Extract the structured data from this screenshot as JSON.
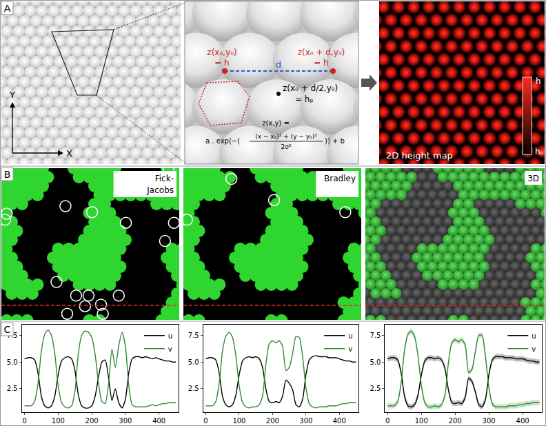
{
  "panels": {
    "A": {
      "label": "A",
      "axes": {
        "x": "X",
        "y": "Y"
      },
      "zoom": {
        "left_point": [
          "z(x₀,y₀)",
          "= h"
        ],
        "distance": "d",
        "right_point": [
          "z(x₀ + d,y₀)",
          "= h"
        ],
        "mid_point": [
          "z(x₀ + d/2,y₀)",
          "= hₚ"
        ],
        "formula": {
          "lhs": "z(x,y) =",
          "prefix": "a . exp(−(",
          "numerator": "(x − x₀)² + (y − y₀)²",
          "denominator": "2σ²",
          "suffix": ")) + b"
        }
      },
      "height_map": {
        "title": "2D height map",
        "scale_top": "h",
        "scale_bottom": "hₚ"
      }
    },
    "B": {
      "label": "B",
      "images": [
        "Fick-Jacobs",
        "Bradley",
        "3D"
      ]
    },
    "C": {
      "label": "C"
    }
  },
  "chart_data": [
    {
      "type": "line",
      "x": [
        0,
        10,
        20,
        30,
        40,
        50,
        60,
        70,
        80,
        90,
        100,
        110,
        120,
        130,
        140,
        150,
        160,
        170,
        180,
        190,
        200,
        210,
        220,
        230,
        240,
        250,
        260,
        270,
        280,
        290,
        300,
        310,
        320,
        330,
        340,
        350,
        360,
        370,
        380,
        390,
        400,
        410,
        420,
        430,
        440,
        450
      ],
      "xlim": [
        -8,
        458
      ],
      "xticks": [
        0,
        100,
        200,
        300,
        400
      ],
      "ylim": [
        0.3,
        8.5
      ],
      "yticks": [
        2.5,
        {
          "value": 5,
          "label": "5.0"
        },
        7.5
      ],
      "legend": "upper right",
      "series": [
        {
          "name": "u",
          "color": "#000000",
          "values": [
            5.3,
            5.4,
            5.4,
            5.2,
            4.0,
            1.8,
            0.9,
            0.7,
            0.9,
            1.8,
            3.8,
            5.1,
            5.4,
            5.5,
            5.3,
            4.2,
            1.9,
            0.9,
            0.7,
            0.7,
            0.9,
            1.8,
            3.6,
            5.0,
            5.2,
            3.5,
            1.4,
            2.5,
            1.2,
            0.7,
            1.5,
            4.0,
            5.3,
            5.5,
            5.5,
            5.4,
            5.5,
            5.4,
            5.3,
            5.4,
            5.3,
            5.2,
            5.1,
            5.1,
            5.0,
            5.0
          ]
        },
        {
          "name": "v",
          "color": "#2e8b2e",
          "values": [
            0.9,
            0.9,
            0.9,
            1.3,
            3.0,
            6.0,
            7.6,
            8.0,
            7.5,
            5.8,
            2.8,
            1.2,
            0.8,
            0.7,
            0.9,
            2.3,
            5.8,
            7.5,
            7.9,
            7.8,
            7.3,
            5.7,
            3.0,
            1.3,
            1.1,
            3.0,
            6.2,
            4.5,
            6.5,
            7.8,
            6.5,
            2.8,
            1.0,
            0.8,
            0.8,
            0.8,
            0.8,
            0.9,
            1.0,
            0.9,
            1.0,
            1.1,
            1.1,
            1.2,
            1.2,
            1.2
          ]
        }
      ]
    },
    {
      "type": "line",
      "x": [
        0,
        10,
        20,
        30,
        40,
        50,
        60,
        70,
        80,
        90,
        100,
        110,
        120,
        130,
        140,
        150,
        160,
        170,
        180,
        190,
        200,
        210,
        220,
        230,
        240,
        250,
        260,
        270,
        280,
        290,
        300,
        310,
        320,
        330,
        340,
        350,
        360,
        370,
        380,
        390,
        400,
        410,
        420,
        430,
        440,
        450
      ],
      "xlim": [
        -8,
        458
      ],
      "xticks": [
        0,
        100,
        200,
        300,
        400
      ],
      "ylim": [
        0.3,
        8.5
      ],
      "yticks": [
        2.5,
        {
          "value": 5,
          "label": "5.0"
        },
        7.5
      ],
      "legend": "upper right",
      "series": [
        {
          "name": "u",
          "color": "#000000",
          "values": [
            5.3,
            5.4,
            5.4,
            5.2,
            4.0,
            1.8,
            1.0,
            0.8,
            1.0,
            1.9,
            3.8,
            5.1,
            5.4,
            5.5,
            5.4,
            5.5,
            5.3,
            4.5,
            2.5,
            1.3,
            1.2,
            1.3,
            1.2,
            1.8,
            3.3,
            3.0,
            2.4,
            1.0,
            0.8,
            1.5,
            3.8,
            5.2,
            5.5,
            5.6,
            5.5,
            5.5,
            5.5,
            5.4,
            5.4,
            5.4,
            5.3,
            5.2,
            5.1,
            5.1,
            5.0,
            5.0
          ]
        },
        {
          "name": "v",
          "color": "#2e8b2e",
          "values": [
            0.9,
            0.9,
            0.9,
            1.3,
            3.0,
            6.0,
            7.4,
            7.8,
            7.3,
            5.6,
            2.8,
            1.2,
            0.8,
            0.7,
            0.8,
            0.8,
            1.0,
            1.8,
            4.8,
            6.7,
            7.0,
            6.8,
            7.0,
            6.5,
            4.2,
            4.5,
            5.8,
            7.4,
            7.3,
            5.5,
            2.6,
            1.1,
            0.8,
            0.7,
            0.8,
            0.8,
            0.8,
            0.9,
            0.9,
            0.9,
            1.0,
            1.1,
            1.1,
            1.2,
            1.2,
            1.2
          ]
        }
      ]
    },
    {
      "type": "line",
      "x": [
        0,
        10,
        20,
        30,
        40,
        50,
        60,
        70,
        80,
        90,
        100,
        110,
        120,
        130,
        140,
        150,
        160,
        170,
        180,
        190,
        200,
        210,
        220,
        230,
        240,
        250,
        260,
        270,
        280,
        290,
        300,
        310,
        320,
        330,
        340,
        350,
        360,
        370,
        380,
        390,
        400,
        410,
        420,
        430,
        440,
        450
      ],
      "xlim": [
        -8,
        458
      ],
      "xticks": [
        0,
        100,
        200,
        300,
        400
      ],
      "ylim": [
        0.3,
        8.5
      ],
      "yticks": [
        2.5,
        {
          "value": 5,
          "label": "5.0"
        },
        7.5
      ],
      "legend": "upper right",
      "series": [
        {
          "name": "u",
          "color": "#000000",
          "values": [
            5.3,
            5.4,
            5.4,
            5.2,
            4.0,
            1.8,
            0.9,
            0.8,
            1.0,
            1.9,
            3.8,
            5.1,
            5.4,
            5.4,
            5.3,
            5.4,
            5.2,
            4.4,
            2.4,
            1.2,
            1.1,
            1.2,
            1.1,
            1.7,
            3.5,
            3.2,
            2.2,
            1.0,
            0.8,
            1.5,
            3.8,
            5.2,
            5.5,
            5.5,
            5.5,
            5.4,
            5.4,
            5.4,
            5.3,
            5.3,
            5.3,
            5.2,
            5.1,
            5.1,
            5.0,
            5.0
          ],
          "error": [
            0.25,
            0.25,
            0.25,
            0.25,
            0.25,
            0.25,
            0.25,
            0.25,
            0.25,
            0.25,
            0.25,
            0.25,
            0.25,
            0.25,
            0.25,
            0.25,
            0.25,
            0.25,
            0.25,
            0.25,
            0.25,
            0.25,
            0.25,
            0.25,
            0.25,
            0.25,
            0.25,
            0.25,
            0.25,
            0.25,
            0.25,
            0.25,
            0.25,
            0.25,
            0.25,
            0.25,
            0.25,
            0.25,
            0.25,
            0.25,
            0.25,
            0.25,
            0.25,
            0.25,
            0.25,
            0.25
          ]
        },
        {
          "name": "v",
          "color": "#2e8b2e",
          "values": [
            0.9,
            0.9,
            0.9,
            1.3,
            3.0,
            6.1,
            7.6,
            7.9,
            7.4,
            5.6,
            2.8,
            1.2,
            0.8,
            0.8,
            0.9,
            0.8,
            1.0,
            1.9,
            4.9,
            6.8,
            7.1,
            6.9,
            7.1,
            6.6,
            4.0,
            4.3,
            6.0,
            7.5,
            7.5,
            5.5,
            2.6,
            1.1,
            0.8,
            0.8,
            0.8,
            0.8,
            0.9,
            0.9,
            0.9,
            1.0,
            1.0,
            1.1,
            1.1,
            1.2,
            1.2,
            1.2
          ],
          "error": [
            0.25,
            0.25,
            0.25,
            0.25,
            0.25,
            0.25,
            0.25,
            0.25,
            0.25,
            0.25,
            0.25,
            0.25,
            0.25,
            0.25,
            0.25,
            0.25,
            0.25,
            0.25,
            0.25,
            0.25,
            0.25,
            0.25,
            0.25,
            0.25,
            0.25,
            0.25,
            0.25,
            0.25,
            0.25,
            0.25,
            0.25,
            0.25,
            0.25,
            0.25,
            0.25,
            0.25,
            0.25,
            0.25,
            0.25,
            0.25,
            0.25,
            0.25,
            0.25,
            0.25,
            0.25,
            0.25
          ]
        }
      ]
    }
  ]
}
